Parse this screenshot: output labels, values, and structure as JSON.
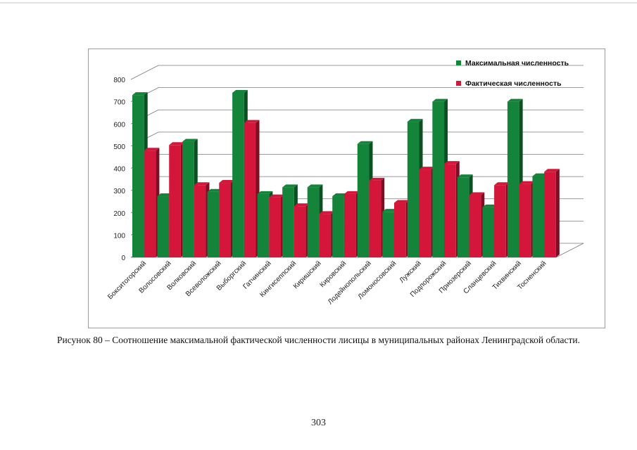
{
  "caption": "Рисунок 80 – Соотношение максимальной  фактической численности лисицы в муниципальных районах Ленинградской области.",
  "page_number": "303",
  "colors": {
    "max": "#13843a",
    "actual": "#d3163a",
    "grid": "#7a7a7a"
  },
  "chart_data": {
    "type": "bar",
    "title": "",
    "xlabel": "",
    "ylabel": "",
    "ylim": [
      0,
      800
    ],
    "yticks": [
      0,
      100,
      200,
      300,
      400,
      500,
      600,
      700,
      800
    ],
    "grid": true,
    "legend_position": "top-right",
    "categories": [
      "Бокситогорский",
      "Волосовский",
      "Волковский",
      "Всеволожский",
      "Выборгский",
      "Гатчинский",
      "Кингисеппский",
      "Киришский",
      "Кировский",
      "Лодейнопольский",
      "Ломоносовский",
      "Лужский",
      "Подпорожский",
      "Приозерский",
      "Сланцевский",
      "Тихвинский",
      "Тосненский"
    ],
    "series": [
      {
        "name": "Максимальная численность",
        "color": "#13843a",
        "values": [
          730,
          275,
          520,
          295,
          740,
          285,
          315,
          315,
          275,
          510,
          205,
          610,
          700,
          360,
          225,
          700,
          365
        ]
      },
      {
        "name": "Фактическая численность",
        "color": "#d3163a",
        "values": [
          480,
          505,
          325,
          335,
          605,
          270,
          230,
          195,
          285,
          345,
          245,
          395,
          420,
          280,
          325,
          330,
          385
        ]
      }
    ]
  }
}
